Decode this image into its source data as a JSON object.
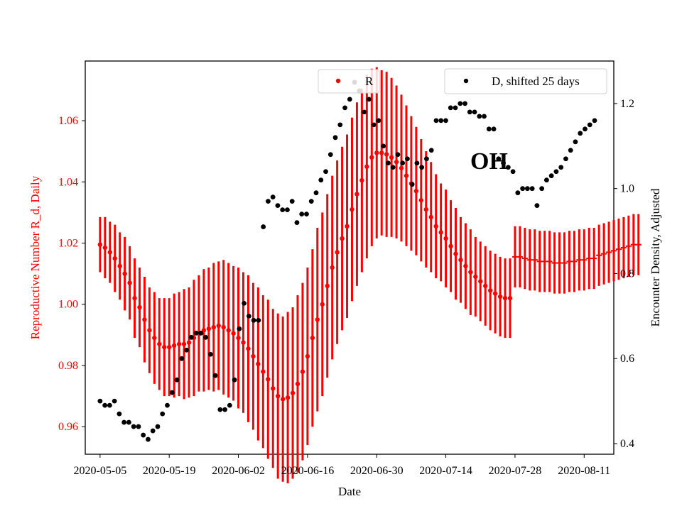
{
  "chart_data": {
    "type": "scatter",
    "title": "",
    "annotation": "OH",
    "xlabel": "Date",
    "ylabel_left": "Reproductive Number R_d, Daily",
    "ylabel_right": "Encounter Density, Adjusted",
    "x_tick_labels": [
      "2020-05-05",
      "2020-05-19",
      "2020-06-02",
      "2020-06-16",
      "2020-06-30",
      "2020-07-14",
      "2020-07-28",
      "2020-08-11"
    ],
    "x_tick_days": [
      0,
      14,
      28,
      42,
      56,
      70,
      84,
      98
    ],
    "x_range_days": [
      -3,
      104
    ],
    "y_left": {
      "ticks": [
        0.96,
        0.98,
        1.0,
        1.02,
        1.04,
        1.06
      ],
      "tick_labels": [
        "0.96",
        "0.98",
        "1.00",
        "1.02",
        "1.04",
        "1.06"
      ],
      "range": [
        0.951,
        1.0795
      ]
    },
    "y_right": {
      "ticks": [
        0.4,
        0.6,
        0.8,
        1.0,
        1.2
      ],
      "tick_labels": [
        "0.4",
        "0.6",
        "0.8",
        "1.0",
        "1.2"
      ],
      "range": [
        0.375,
        1.3
      ]
    },
    "colors": {
      "R": "#ff0000",
      "D": "#000000",
      "left_axis_text": "#ff0000",
      "right_axis_text": "#000000"
    },
    "legend": {
      "R_label": "R",
      "D_label": "D, shifted 25 days"
    },
    "series": [
      {
        "name": "R",
        "axis": "left",
        "start_day": 0,
        "values": [
          1.0195,
          1.0185,
          1.017,
          1.015,
          1.0125,
          1.01,
          1.007,
          1.002,
          0.999,
          0.995,
          0.9915,
          0.989,
          0.987,
          0.986,
          0.986,
          0.9865,
          0.987,
          0.987,
          0.9875,
          0.989,
          0.9905,
          0.9915,
          0.992,
          0.9925,
          0.993,
          0.9925,
          0.9915,
          0.9905,
          0.989,
          0.9875,
          0.9855,
          0.983,
          0.9805,
          0.978,
          0.9755,
          0.9725,
          0.97,
          0.969,
          0.9695,
          0.971,
          0.974,
          0.978,
          0.983,
          0.989,
          0.995,
          1.0,
          1.006,
          1.012,
          1.017,
          1.0215,
          1.0255,
          1.031,
          1.036,
          1.0405,
          1.045,
          1.048,
          1.0495,
          1.0495,
          1.049,
          1.048,
          1.0465,
          1.0445,
          1.042,
          1.0395,
          1.037,
          1.034,
          1.031,
          1.0285,
          1.0255,
          1.0235,
          1.0215,
          1.019,
          1.0165,
          1.0145,
          1.0125,
          1.0105,
          1.009,
          1.0075,
          1.006,
          1.0045,
          1.0035,
          1.0025,
          1.002,
          1.002
        ],
        "errors": [
          0.009,
          0.01,
          0.01,
          0.011,
          0.011,
          0.012,
          0.012,
          0.013,
          0.013,
          0.014,
          0.014,
          0.015,
          0.015,
          0.016,
          0.016,
          0.017,
          0.017,
          0.018,
          0.018,
          0.019,
          0.019,
          0.02,
          0.02,
          0.021,
          0.021,
          0.022,
          0.022,
          0.022,
          0.023,
          0.023,
          0.024,
          0.024,
          0.025,
          0.025,
          0.026,
          0.026,
          0.027,
          0.027,
          0.028,
          0.028,
          0.029,
          0.029,
          0.029,
          0.029,
          0.03,
          0.03,
          0.03,
          0.03,
          0.03,
          0.03,
          0.03,
          0.03,
          0.03,
          0.03,
          0.03,
          0.029,
          0.028,
          0.027,
          0.027,
          0.026,
          0.025,
          0.024,
          0.023,
          0.022,
          0.021,
          0.02,
          0.019,
          0.018,
          0.017,
          0.016,
          0.016,
          0.015,
          0.015,
          0.014,
          0.014,
          0.014,
          0.013,
          0.013,
          0.013,
          0.013,
          0.013,
          0.013,
          0.013,
          0.013
        ]
      },
      {
        "name": "R forecast",
        "axis": "left",
        "start_day": 84,
        "values": [
          1.0155,
          1.0155,
          1.015,
          1.0145,
          1.0145,
          1.014,
          1.014,
          1.014,
          1.0135,
          1.0135,
          1.0135,
          1.014,
          1.014,
          1.0145,
          1.0145,
          1.015,
          1.015,
          1.016,
          1.0165,
          1.017,
          1.0175,
          1.018,
          1.0185,
          1.019,
          1.0195,
          1.0195
        ],
        "errors": [
          0.01,
          0.01,
          0.01,
          0.01,
          0.01,
          0.01,
          0.01,
          0.01,
          0.01,
          0.01,
          0.01,
          0.01,
          0.01,
          0.01,
          0.01,
          0.01,
          0.01,
          0.01,
          0.01,
          0.01,
          0.01,
          0.01,
          0.01,
          0.01,
          0.01,
          0.01
        ]
      },
      {
        "name": "D, shifted 25 days",
        "axis": "right",
        "start_day": 0,
        "values": [
          0.5,
          0.49,
          0.49,
          0.5,
          0.47,
          0.45,
          0.45,
          0.44,
          0.44,
          0.42,
          0.41,
          0.43,
          0.44,
          0.47,
          0.49,
          0.52,
          0.55,
          0.6,
          0.62,
          0.65,
          0.66,
          0.66,
          0.65,
          0.61,
          0.56,
          0.48,
          0.48,
          0.49,
          0.55,
          0.67,
          0.73,
          0.7,
          0.69,
          0.69,
          0.91,
          0.97,
          0.98,
          0.96,
          0.95,
          0.95,
          0.97,
          0.92,
          0.94,
          0.94,
          0.97,
          0.99,
          1.02,
          1.04,
          1.08,
          1.12,
          1.15,
          1.19,
          1.21,
          1.25,
          1.23,
          1.18,
          1.21,
          1.15,
          1.16,
          1.1,
          1.06,
          1.05,
          1.08,
          1.06,
          1.07,
          1.01,
          1.06,
          1.05,
          1.07,
          1.09,
          1.16,
          1.16,
          1.16,
          1.19,
          1.19,
          1.2,
          1.2,
          1.18,
          1.18,
          1.17,
          1.17,
          1.14,
          1.14,
          1.07,
          1.06,
          1.05,
          1.04,
          0.99,
          1.0,
          1.0,
          1.0,
          0.96,
          1.0,
          1.02,
          1.03,
          1.04,
          1.05,
          1.07,
          1.09,
          1.11,
          1.13,
          1.14,
          1.15,
          1.16
        ],
        "x_step": 0.972
      }
    ]
  }
}
